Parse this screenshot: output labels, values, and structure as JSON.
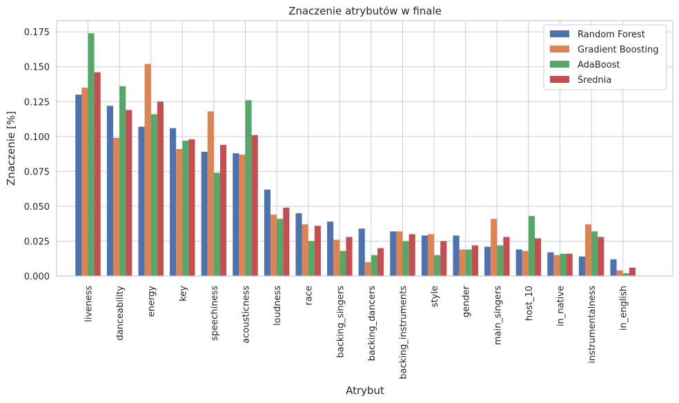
{
  "chart_data": {
    "type": "bar",
    "title": "Znaczenie atrybutów w finale",
    "xlabel": "Atrybut",
    "ylabel": "Znaczenie [%]",
    "ylim": [
      0,
      0.183
    ],
    "yticks": [
      0.0,
      0.025,
      0.05,
      0.075,
      0.1,
      0.125,
      0.15,
      0.175
    ],
    "ytick_labels": [
      "0.000",
      "0.025",
      "0.050",
      "0.075",
      "0.100",
      "0.125",
      "0.150",
      "0.175"
    ],
    "grid": true,
    "legend_position": "top-right",
    "categories": [
      "liveness",
      "danceability",
      "energy",
      "key",
      "speechiness",
      "acousticness",
      "loudness",
      "race",
      "backing_singers",
      "backing_dancers",
      "backing_instruments",
      "style",
      "gender",
      "main_singers",
      "host_10",
      "in_native",
      "instrumentalness",
      "in_english"
    ],
    "series": [
      {
        "name": "Random Forest",
        "color": "#4c72b0",
        "values": [
          0.13,
          0.122,
          0.107,
          0.106,
          0.089,
          0.088,
          0.062,
          0.045,
          0.039,
          0.034,
          0.032,
          0.029,
          0.029,
          0.021,
          0.019,
          0.017,
          0.014,
          0.012
        ]
      },
      {
        "name": "Gradient Boosting",
        "color": "#dd8452",
        "values": [
          0.135,
          0.099,
          0.152,
          0.091,
          0.118,
          0.087,
          0.044,
          0.037,
          0.026,
          0.01,
          0.032,
          0.03,
          0.019,
          0.041,
          0.018,
          0.015,
          0.037,
          0.004
        ]
      },
      {
        "name": "AdaBoost",
        "color": "#55a868",
        "values": [
          0.174,
          0.136,
          0.116,
          0.097,
          0.074,
          0.126,
          0.041,
          0.025,
          0.018,
          0.015,
          0.025,
          0.015,
          0.019,
          0.022,
          0.043,
          0.016,
          0.032,
          0.002
        ]
      },
      {
        "name": "Średnia",
        "color": "#c44e52",
        "values": [
          0.146,
          0.119,
          0.125,
          0.098,
          0.094,
          0.101,
          0.049,
          0.036,
          0.028,
          0.02,
          0.03,
          0.025,
          0.022,
          0.028,
          0.027,
          0.016,
          0.028,
          0.006
        ]
      }
    ]
  }
}
